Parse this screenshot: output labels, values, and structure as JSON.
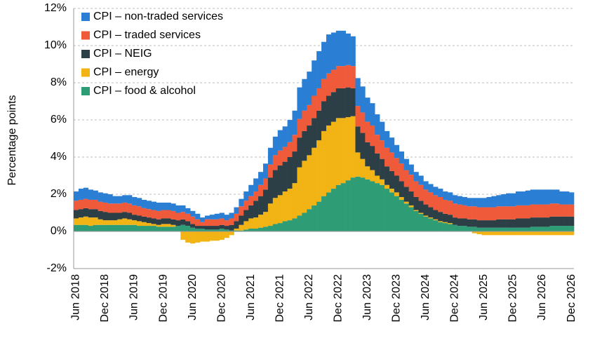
{
  "chart_data": {
    "type": "stacked-bar",
    "y_label": "Percentage points",
    "categories": [
      "Jun 2018",
      null,
      null,
      null,
      null,
      null,
      "Dec 2018",
      null,
      null,
      null,
      null,
      null,
      "Jun 2019",
      null,
      null,
      null,
      null,
      null,
      "Dec 2019",
      null,
      null,
      null,
      null,
      null,
      "Jun 2020",
      null,
      null,
      null,
      null,
      null,
      "Dec 2020",
      null,
      null,
      null,
      null,
      null,
      "Jun 2021",
      null,
      null,
      null,
      null,
      null,
      "Dec 2021",
      null,
      null,
      null,
      null,
      null,
      "Jun 2022",
      null,
      null,
      null,
      null,
      null,
      "Dec 2022",
      null,
      null,
      null,
      null,
      null,
      "Jun 2023",
      null,
      null,
      null,
      null,
      null,
      "Dec 2023",
      null,
      null,
      null,
      null,
      null,
      "Jun 2024",
      null,
      null,
      null,
      null,
      null,
      "Dec 2024",
      null,
      null,
      null,
      null,
      null,
      "Jun 2025",
      null,
      null,
      null,
      null,
      null,
      "Dec 2025",
      null,
      null,
      null,
      null,
      null,
      "Jun 2026",
      null,
      null,
      null,
      null,
      null,
      "Dec 2026"
    ],
    "ylim": [
      -2,
      12
    ],
    "yticks": [
      {
        "value": -2,
        "label": "-2%"
      },
      {
        "value": 0,
        "label": "0%"
      },
      {
        "value": 2,
        "label": "2%"
      },
      {
        "value": 4,
        "label": "4%"
      },
      {
        "value": 6,
        "label": "6%"
      },
      {
        "value": 8,
        "label": "8%"
      },
      {
        "value": 10,
        "label": "10%"
      },
      {
        "value": 12,
        "label": "12%"
      }
    ],
    "grid": true,
    "legend": "top-left",
    "series": [
      {
        "name": "CPI – non-traded services",
        "color": "#2a7fd4",
        "values": [
          0.5,
          0.6,
          0.6,
          0.55,
          0.5,
          0.5,
          0.5,
          0.5,
          0.4,
          0.4,
          0.4,
          0.45,
          0.45,
          0.45,
          0.45,
          0.45,
          0.45,
          0.45,
          0.4,
          0.4,
          0.4,
          0.4,
          0.35,
          0.3,
          0.3,
          0.3,
          0.25,
          0.2,
          0.25,
          0.3,
          0.3,
          0.3,
          0.3,
          0.35,
          0.4,
          0.5,
          0.6,
          0.7,
          0.7,
          0.8,
          0.9,
          1.0,
          1.1,
          1.1,
          1.2,
          1.3,
          1.7,
          1.7,
          1.8,
          1.9,
          2.0,
          2.0,
          2.1,
          2.0,
          1.9,
          1.9,
          1.7,
          1.6,
          1.5,
          1.4,
          1.3,
          1.2,
          1.1,
          1.0,
          0.9,
          0.8,
          0.7,
          0.65,
          0.6,
          0.55,
          0.5,
          0.5,
          0.45,
          0.45,
          0.45,
          0.45,
          0.45,
          0.45,
          0.45,
          0.45,
          0.45,
          0.45,
          0.45,
          0.5,
          0.5,
          0.55,
          0.6,
          0.6,
          0.65,
          0.7,
          0.7,
          0.75,
          0.75,
          0.8,
          0.8,
          0.8,
          0.8,
          0.8,
          0.75,
          0.75,
          0.7,
          0.7,
          0.65
        ]
      },
      {
        "name": "CPI – traded services",
        "color": "#ef5a3a",
        "values": [
          0.5,
          0.5,
          0.5,
          0.5,
          0.5,
          0.5,
          0.5,
          0.5,
          0.5,
          0.5,
          0.5,
          0.5,
          0.5,
          0.5,
          0.45,
          0.45,
          0.45,
          0.45,
          0.45,
          0.45,
          0.45,
          0.4,
          0.4,
          0.4,
          0.4,
          0.35,
          0.2,
          0.35,
          0.35,
          0.35,
          0.35,
          0.3,
          0.35,
          0.4,
          0.5,
          0.5,
          0.5,
          0.5,
          0.6,
          0.6,
          0.7,
          0.8,
          0.8,
          0.8,
          0.8,
          0.9,
          1.0,
          1.1,
          1.1,
          1.2,
          1.2,
          1.2,
          1.2,
          1.2,
          1.2,
          1.2,
          1.2,
          1.2,
          1.1,
          1.1,
          1.1,
          1.1,
          1.0,
          1.0,
          1.0,
          1.0,
          0.95,
          0.95,
          0.9,
          0.9,
          0.85,
          0.85,
          0.8,
          0.8,
          0.8,
          0.8,
          0.75,
          0.75,
          0.75,
          0.75,
          0.7,
          0.7,
          0.7,
          0.7,
          0.7,
          0.7,
          0.7,
          0.7,
          0.7,
          0.7,
          0.7,
          0.7,
          0.7,
          0.7,
          0.7,
          0.7,
          0.7,
          0.7,
          0.7,
          0.7,
          0.65,
          0.65,
          0.65
        ]
      },
      {
        "name": "CPI – NEIG",
        "color": "#2c3f46",
        "values": [
          0.45,
          0.45,
          0.45,
          0.45,
          0.45,
          0.45,
          0.45,
          0.4,
          0.4,
          0.35,
          0.35,
          0.35,
          0.3,
          0.3,
          0.3,
          0.3,
          0.3,
          0.3,
          0.3,
          0.3,
          0.3,
          0.3,
          0.3,
          0.25,
          0.2,
          0.15,
          0.15,
          0.2,
          0.2,
          0.2,
          0.2,
          0.2,
          0.3,
          0.4,
          0.5,
          0.6,
          0.7,
          0.9,
          1.0,
          1.2,
          1.4,
          1.5,
          1.6,
          1.6,
          1.7,
          1.7,
          1.6,
          1.6,
          1.6,
          1.6,
          1.6,
          1.6,
          1.6,
          1.6,
          1.6,
          1.6,
          1.6,
          1.5,
          1.4,
          1.4,
          1.3,
          1.3,
          1.2,
          1.1,
          1.0,
          0.95,
          0.9,
          0.85,
          0.8,
          0.75,
          0.7,
          0.65,
          0.6,
          0.55,
          0.5,
          0.5,
          0.45,
          0.45,
          0.4,
          0.4,
          0.4,
          0.4,
          0.4,
          0.4,
          0.4,
          0.4,
          0.4,
          0.45,
          0.45,
          0.45,
          0.45,
          0.5,
          0.5,
          0.5,
          0.5,
          0.5,
          0.5,
          0.5,
          0.5,
          0.5,
          0.5,
          0.5,
          0.5
        ]
      },
      {
        "name": "CPI – energy",
        "color": "#f2b414",
        "values": [
          0.35,
          0.4,
          0.45,
          0.45,
          0.4,
          0.3,
          0.25,
          0.25,
          0.25,
          0.3,
          0.35,
          0.3,
          0.25,
          0.25,
          0.2,
          0.15,
          0.1,
          0.1,
          0.15,
          0.15,
          0.1,
          0.0,
          -0.45,
          -0.6,
          -0.65,
          -0.6,
          -0.55,
          -0.55,
          -0.5,
          -0.5,
          -0.45,
          -0.35,
          -0.2,
          0.1,
          0.3,
          0.45,
          0.55,
          0.6,
          0.7,
          0.8,
          1.2,
          1.4,
          1.5,
          1.6,
          1.7,
          1.9,
          2.6,
          2.8,
          2.9,
          3.1,
          3.3,
          3.5,
          3.6,
          3.6,
          3.6,
          3.5,
          3.4,
          3.3,
          1.3,
          1.0,
          0.7,
          0.6,
          0.4,
          0.3,
          0.2,
          0.2,
          0.2,
          0.15,
          0.1,
          0.1,
          0.05,
          0.05,
          0.05,
          0.05,
          0.05,
          0.05,
          0.05,
          0.05,
          0.0,
          0.0,
          0.0,
          0.0,
          -0.1,
          -0.15,
          -0.2,
          -0.2,
          -0.2,
          -0.2,
          -0.2,
          -0.2,
          -0.2,
          -0.2,
          -0.2,
          -0.2,
          -0.2,
          -0.2,
          -0.2,
          -0.2,
          -0.2,
          -0.2,
          -0.2,
          -0.2,
          -0.2
        ]
      },
      {
        "name": "CPI – food & alcohol",
        "color": "#2e9d76",
        "values": [
          0.35,
          0.35,
          0.35,
          0.3,
          0.35,
          0.35,
          0.35,
          0.35,
          0.35,
          0.35,
          0.35,
          0.35,
          0.35,
          0.3,
          0.3,
          0.3,
          0.3,
          0.25,
          0.25,
          0.25,
          0.25,
          0.3,
          0.35,
          0.3,
          0.2,
          0.15,
          0.15,
          0.1,
          0.1,
          0.1,
          0.15,
          0.1,
          0.05,
          0.05,
          0.05,
          0.1,
          0.15,
          0.15,
          0.2,
          0.25,
          0.3,
          0.4,
          0.45,
          0.55,
          0.6,
          0.7,
          0.85,
          1.0,
          1.2,
          1.4,
          1.6,
          1.9,
          2.1,
          2.3,
          2.5,
          2.6,
          2.75,
          2.9,
          2.95,
          2.9,
          2.8,
          2.7,
          2.6,
          2.5,
          2.3,
          2.1,
          1.9,
          1.7,
          1.5,
          1.3,
          1.1,
          0.95,
          0.8,
          0.7,
          0.6,
          0.5,
          0.45,
          0.4,
          0.35,
          0.3,
          0.3,
          0.25,
          0.25,
          0.2,
          0.2,
          0.2,
          0.2,
          0.2,
          0.2,
          0.2,
          0.2,
          0.2,
          0.2,
          0.2,
          0.25,
          0.25,
          0.25,
          0.25,
          0.3,
          0.3,
          0.3,
          0.3,
          0.3
        ]
      }
    ]
  }
}
